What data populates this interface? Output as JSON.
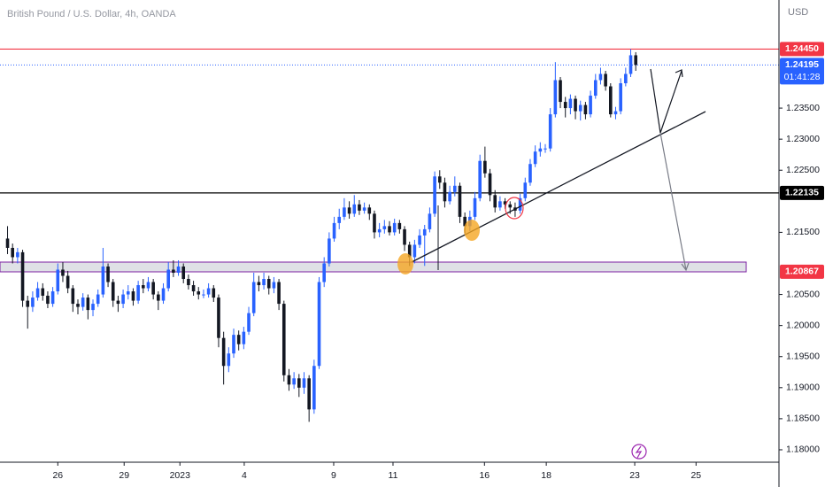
{
  "chart_data": {
    "type": "candlestick",
    "title": "British Pound / U.S. Dollar, 4h, OANDA",
    "currency": "USD",
    "up_color": "#2962ff",
    "down_color": "#131722",
    "open": [
      1.214,
      1.2125,
      1.211,
      1.2118,
      1.204,
      1.203,
      1.2045,
      1.206,
      1.2048,
      1.2035,
      1.2055,
      1.209,
      1.208,
      1.206,
      1.2035,
      1.203,
      1.2045,
      1.2025,
      1.2035,
      1.205,
      1.2095,
      1.207,
      1.204,
      1.2035,
      1.205,
      1.2055,
      1.204,
      1.2065,
      1.206,
      1.207,
      1.205,
      1.204,
      1.206,
      1.209,
      1.2085,
      1.2095,
      1.2075,
      1.2065,
      1.2055,
      1.205,
      1.205,
      1.206,
      1.2045,
      1.198,
      1.1935,
      1.1955,
      1.1985,
      1.197,
      1.199,
      1.202,
      1.207,
      1.2065,
      1.2075,
      1.206,
      1.207,
      1.2035,
      1.192,
      1.1905,
      1.1915,
      1.19,
      1.1915,
      1.1865,
      1.1935,
      1.207,
      1.21,
      1.214,
      1.2165,
      1.2175,
      1.219,
      1.218,
      1.2195,
      1.2185,
      1.219,
      1.218,
      1.215,
      1.2155,
      1.216,
      1.215,
      1.2165,
      1.2155,
      1.213,
      1.211,
      1.213,
      1.2145,
      1.2155,
      1.218,
      1.224,
      1.223,
      1.22,
      1.2215,
      1.2225,
      1.2175,
      1.216,
      1.2175,
      1.2205,
      1.2265,
      1.2245,
      1.221,
      1.219,
      1.22,
      1.2195,
      1.219,
      1.2185,
      1.2205,
      1.223,
      1.226,
      1.228,
      1.2285,
      1.2285,
      1.234,
      1.2395,
      1.236,
      1.235,
      1.2365,
      1.2345,
      1.2355,
      1.234,
      1.237,
      1.2395,
      1.2405,
      1.2385,
      1.234,
      1.2345,
      1.239,
      1.2405,
      1.2435
    ],
    "high": [
      1.216,
      1.2132,
      1.2125,
      1.2122,
      1.2048,
      1.2055,
      1.207,
      1.2068,
      1.2055,
      1.2062,
      1.21,
      1.2102,
      1.2088,
      1.2065,
      1.2042,
      1.2052,
      1.205,
      1.2042,
      1.2058,
      1.2125,
      1.21,
      1.2075,
      1.2048,
      1.2058,
      1.2065,
      1.206,
      1.2072,
      1.2075,
      1.2078,
      1.2075,
      1.2055,
      1.2068,
      1.2102,
      1.2105,
      1.2105,
      1.21,
      1.2082,
      1.2072,
      1.2062,
      1.2058,
      1.2068,
      1.2065,
      1.205,
      1.199,
      1.1965,
      1.1995,
      1.1992,
      1.1998,
      1.203,
      1.2085,
      1.208,
      1.2085,
      1.208,
      1.2078,
      1.2075,
      1.204,
      1.193,
      1.1925,
      1.1922,
      1.1925,
      1.192,
      1.1945,
      1.2078,
      1.211,
      1.215,
      1.2175,
      1.2188,
      1.2205,
      1.22,
      1.221,
      1.2202,
      1.2198,
      1.2195,
      1.2185,
      1.2165,
      1.217,
      1.2168,
      1.2172,
      1.217,
      1.216,
      1.2135,
      1.2138,
      1.2155,
      1.2162,
      1.219,
      1.2248,
      1.225,
      1.2238,
      1.2225,
      1.224,
      1.223,
      1.2182,
      1.2185,
      1.2215,
      1.2275,
      1.2288,
      1.2252,
      1.2218,
      1.2208,
      1.2205,
      1.22,
      1.2198,
      1.2212,
      1.2238,
      1.2268,
      1.229,
      1.2295,
      1.2292,
      1.235,
      1.2424,
      1.24,
      1.2368,
      1.2372,
      1.237,
      1.2362,
      1.236,
      1.2378,
      1.2405,
      1.2415,
      1.241,
      1.239,
      1.2352,
      1.2398,
      1.2415,
      1.2445,
      1.244
    ],
    "low": [
      1.2115,
      1.21,
      1.21,
      1.203,
      1.1995,
      1.2022,
      1.204,
      1.204,
      1.2028,
      1.203,
      1.205,
      1.207,
      1.2052,
      1.2022,
      1.2018,
      1.2024,
      1.201,
      1.2015,
      1.203,
      1.2045,
      1.2062,
      1.203,
      1.2022,
      1.2028,
      1.2042,
      1.2032,
      1.2035,
      1.2052,
      1.2055,
      1.2042,
      1.2025,
      1.2035,
      1.2055,
      1.2078,
      1.208,
      1.2068,
      1.2058,
      1.2048,
      1.2042,
      1.2044,
      1.2045,
      1.2038,
      1.1965,
      1.1905,
      1.1925,
      1.1948,
      1.196,
      1.1962,
      1.1985,
      1.2015,
      1.2055,
      1.2058,
      1.205,
      1.2052,
      1.2025,
      1.191,
      1.1895,
      1.1898,
      1.1885,
      1.189,
      1.1845,
      1.1858,
      1.193,
      1.2062,
      1.2095,
      1.2135,
      1.2155,
      1.217,
      1.2172,
      1.2175,
      1.2178,
      1.218,
      1.217,
      1.214,
      1.2142,
      1.2148,
      1.2145,
      1.2145,
      1.2148,
      1.212,
      1.2096,
      1.21,
      1.2125,
      1.2096,
      1.215,
      1.2175,
      1.222,
      1.219,
      1.2195,
      1.2208,
      1.2165,
      1.2148,
      1.2152,
      1.217,
      1.22,
      1.2238,
      1.22,
      1.2182,
      1.2185,
      1.2188,
      1.218,
      1.2175,
      1.218,
      1.22,
      1.2225,
      1.2255,
      1.2272,
      1.2278,
      1.228,
      1.2335,
      1.235,
      1.2335,
      1.234,
      1.2332,
      1.233,
      1.2332,
      1.2335,
      1.2365,
      1.2388,
      1.2378,
      1.2335,
      1.2332,
      1.234,
      1.2385,
      1.24,
      1.241
    ],
    "close": [
      1.2125,
      1.211,
      1.2118,
      1.204,
      1.203,
      1.2045,
      1.206,
      1.2048,
      1.2035,
      1.2055,
      1.209,
      1.208,
      1.206,
      1.2035,
      1.203,
      1.2045,
      1.2025,
      1.2035,
      1.205,
      1.2095,
      1.207,
      1.204,
      1.2035,
      1.205,
      1.2055,
      1.204,
      1.2065,
      1.206,
      1.207,
      1.205,
      1.204,
      1.206,
      1.209,
      1.2085,
      1.2095,
      1.2075,
      1.2065,
      1.2055,
      1.205,
      1.205,
      1.206,
      1.2045,
      1.198,
      1.1935,
      1.1955,
      1.1985,
      1.197,
      1.199,
      1.202,
      1.207,
      1.2065,
      1.2075,
      1.206,
      1.207,
      1.2035,
      1.192,
      1.1905,
      1.1915,
      1.19,
      1.1915,
      1.1865,
      1.1935,
      1.207,
      1.21,
      1.214,
      1.2165,
      1.2175,
      1.219,
      1.218,
      1.2195,
      1.2185,
      1.219,
      1.218,
      1.215,
      1.2155,
      1.216,
      1.215,
      1.2165,
      1.2155,
      1.213,
      1.211,
      1.213,
      1.2145,
      1.2155,
      1.218,
      1.224,
      1.223,
      1.22,
      1.2215,
      1.2225,
      1.2175,
      1.216,
      1.2175,
      1.2205,
      1.2265,
      1.2245,
      1.221,
      1.219,
      1.22,
      1.2195,
      1.219,
      1.2185,
      1.2205,
      1.223,
      1.226,
      1.228,
      1.2285,
      1.2285,
      1.234,
      1.2395,
      1.236,
      1.235,
      1.2365,
      1.2345,
      1.2355,
      1.234,
      1.237,
      1.2395,
      1.2405,
      1.2385,
      1.234,
      1.2345,
      1.239,
      1.2405,
      1.2435,
      1.24195
    ],
    "xlim": [
      -1.5,
      153.5
    ],
    "xticks": [
      {
        "value": 10,
        "label": "26"
      },
      {
        "value": 23.2,
        "label": "29"
      },
      {
        "value": 34.3,
        "label": "2023"
      },
      {
        "value": 47.1,
        "label": "4"
      },
      {
        "value": 64.9,
        "label": "9"
      },
      {
        "value": 76.7,
        "label": "11"
      },
      {
        "value": 94.9,
        "label": "16"
      },
      {
        "value": 107.2,
        "label": "18"
      },
      {
        "value": 124.8,
        "label": "23"
      },
      {
        "value": 137,
        "label": "25"
      }
    ],
    "ylim": [
      1.178,
      1.2524
    ],
    "yticks": [
      {
        "value": 1.18,
        "label": "1.18000"
      },
      {
        "value": 1.185,
        "label": "1.18500"
      },
      {
        "value": 1.19,
        "label": "1.19000"
      },
      {
        "value": 1.195,
        "label": "1.19500"
      },
      {
        "value": 1.2,
        "label": "1.20000"
      },
      {
        "value": 1.205,
        "label": "1.20500"
      },
      {
        "value": 1.215,
        "label": "1.21500"
      },
      {
        "value": 1.225,
        "label": "1.22500"
      },
      {
        "value": 1.23,
        "label": "1.23000"
      },
      {
        "value": 1.235,
        "label": "1.23500"
      }
    ],
    "levels": [
      {
        "value": 1.2445,
        "label": "1.24450",
        "color": "#f23645",
        "style": "solid"
      },
      {
        "value": 1.24195,
        "label": "1.24195",
        "sublabel": "01:41:28",
        "color": "#2962ff",
        "style": "dotted"
      },
      {
        "value": 1.22135,
        "label": "1.22135",
        "color": "#000000",
        "style": "solid"
      },
      {
        "value": 1.20867,
        "label": "1.20867",
        "color": "#f23645",
        "style": "none"
      }
    ]
  }
}
